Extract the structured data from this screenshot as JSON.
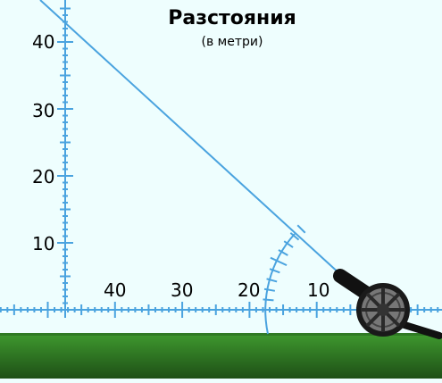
{
  "title": "Разстояния",
  "subtitle": "(в метри)",
  "vertical_axis": {
    "labels": [
      "10",
      "20",
      "30",
      "40"
    ]
  },
  "horizontal_axis": {
    "labels": [
      "10",
      "20",
      "30",
      "40"
    ]
  },
  "colors": {
    "background": "#eefefe",
    "axis": "#4aa3df",
    "grass_top": "#3f9a2f",
    "grass_bottom": "#1e4f16",
    "cannon": "#111111"
  },
  "icons": [
    "cannon-icon",
    "protractor-icon",
    "trajectory-line"
  ]
}
